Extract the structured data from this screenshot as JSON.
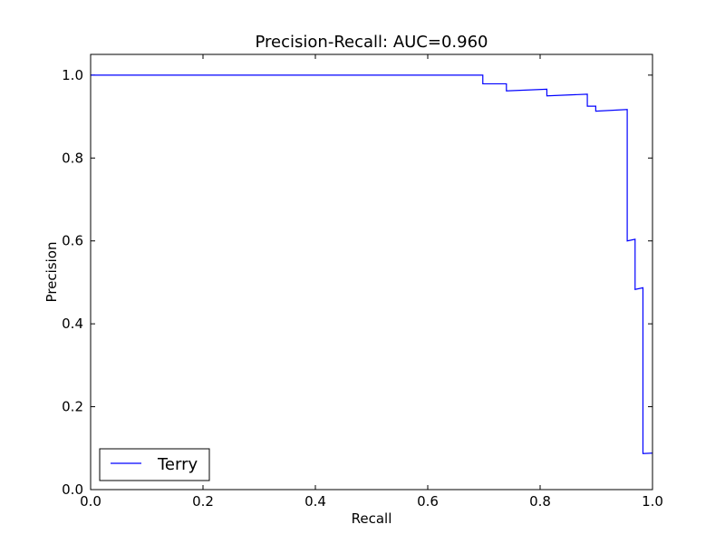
{
  "chart_data": {
    "type": "line",
    "title": "Precision-Recall: AUC=0.960",
    "xlabel": "Recall",
    "ylabel": "Precision",
    "xlim": [
      0.0,
      1.0
    ],
    "ylim": [
      0.0,
      1.05
    ],
    "xticks": [
      0.0,
      0.2,
      0.4,
      0.6,
      0.8,
      1.0
    ],
    "xtick_labels": [
      "0.0",
      "0.2",
      "0.4",
      "0.6",
      "0.8",
      "1.0"
    ],
    "yticks": [
      0.0,
      0.2,
      0.4,
      0.6,
      0.8,
      1.0
    ],
    "ytick_labels": [
      "0.0",
      "0.2",
      "0.4",
      "0.6",
      "0.8",
      "1.0"
    ],
    "grid": false,
    "legend_position": "lower-left",
    "series": [
      {
        "name": "Terry",
        "color": "#0000ff",
        "step": true,
        "x": [
          0.0,
          0.698,
          0.698,
          0.74,
          0.74,
          0.812,
          0.812,
          0.884,
          0.884,
          0.899,
          0.899,
          0.955,
          0.955,
          0.969,
          0.969,
          0.983,
          0.983,
          1.0
        ],
        "y": [
          1.0,
          1.0,
          0.979,
          0.979,
          0.962,
          0.966,
          0.95,
          0.954,
          0.925,
          0.925,
          0.913,
          0.917,
          0.6,
          0.604,
          0.483,
          0.487,
          0.087,
          0.088
        ]
      }
    ]
  }
}
